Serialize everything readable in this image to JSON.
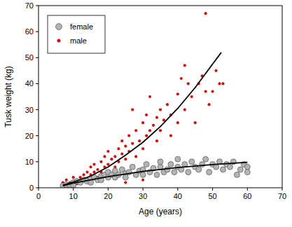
{
  "chart_data": {
    "type": "scatter",
    "x_label": "Age (years)",
    "y_label": "Tusk weight (kg)",
    "xlim": [
      0,
      70
    ],
    "ylim": [
      0,
      70
    ],
    "xticks": [
      0,
      10,
      20,
      30,
      40,
      50,
      60,
      70
    ],
    "yticks": [
      0,
      10,
      20,
      30,
      40,
      50,
      60,
      70
    ],
    "grid": false,
    "legend": "upper left",
    "series": [
      {
        "name": "male",
        "color": "#cc1111",
        "marker": "dot",
        "x": [
          7,
          7,
          8,
          8,
          9,
          9,
          10,
          10,
          11,
          11,
          12,
          12,
          13,
          13,
          14,
          14,
          15,
          15,
          16,
          16,
          17,
          17,
          18,
          18,
          19,
          19,
          20,
          20,
          20,
          21,
          22,
          22,
          23,
          23,
          24,
          24,
          25,
          25,
          25,
          26,
          26,
          27,
          27,
          28,
          28,
          29,
          30,
          30,
          30,
          31,
          31,
          32,
          32,
          33,
          34,
          34,
          35,
          35,
          36,
          37,
          38,
          38,
          40,
          40,
          41,
          42,
          42,
          43,
          44,
          45,
          46,
          47,
          48,
          48,
          49,
          50,
          51,
          52,
          53
        ],
        "values": [
          1,
          2,
          1.5,
          3,
          2,
          1,
          2.5,
          4,
          3,
          1.5,
          4,
          2,
          5,
          3,
          6,
          3.5,
          5,
          8,
          6,
          9,
          7,
          4,
          10,
          6,
          8,
          12,
          9,
          14,
          5,
          11,
          12,
          8,
          15,
          10,
          13,
          18,
          16,
          11,
          2,
          20,
          14,
          30,
          17,
          22,
          12,
          18,
          25,
          15,
          3,
          20,
          28,
          35,
          22,
          24,
          27,
          18,
          30,
          22,
          26,
          32,
          28,
          20,
          36,
          25,
          42,
          30,
          47,
          40,
          35,
          25,
          40,
          43,
          37,
          67,
          32,
          37,
          45,
          40,
          40
        ]
      },
      {
        "name": "female",
        "color": "#b4b4b4",
        "marker": "circle",
        "x": [
          7,
          8,
          9,
          10,
          10,
          11,
          12,
          13,
          14,
          15,
          15,
          16,
          17,
          18,
          18,
          19,
          20,
          20,
          21,
          22,
          22,
          23,
          24,
          25,
          25,
          26,
          27,
          28,
          29,
          30,
          30,
          31,
          32,
          33,
          34,
          35,
          35,
          36,
          37,
          38,
          39,
          40,
          40,
          41,
          42,
          43,
          44,
          45,
          46,
          47,
          48,
          49,
          50,
          51,
          52,
          53,
          54,
          55,
          56,
          57,
          58,
          59,
          60,
          60
        ],
        "values": [
          0.8,
          1.2,
          1,
          2,
          1,
          2.5,
          2,
          3,
          2.5,
          3.5,
          2,
          4,
          3,
          4.5,
          3,
          5,
          4,
          6,
          5,
          4,
          6.5,
          5,
          7,
          5.5,
          4,
          6,
          8,
          5,
          6.5,
          7,
          5,
          9,
          6,
          7.5,
          5,
          8,
          10,
          6,
          7,
          9,
          6,
          8,
          11,
          7,
          9,
          6,
          10,
          8,
          7,
          9,
          11,
          6,
          9,
          8,
          10,
          7,
          9,
          8,
          10,
          5,
          7,
          9,
          8,
          6
        ]
      },
      {
        "type": "line",
        "color": "#000000",
        "line_style": "solid",
        "x": [
          7,
          10,
          15,
          20,
          25,
          30,
          35,
          40,
          45,
          50,
          52.5
        ],
        "values": [
          1,
          2.2,
          4.5,
          8,
          12.5,
          17.5,
          23.5,
          30.5,
          38.5,
          47.5,
          52
        ]
      },
      {
        "type": "line",
        "color": "#000000",
        "line_style": "solid",
        "x": [
          7,
          10,
          20,
          30,
          40,
          50,
          60
        ],
        "values": [
          0.8,
          1.8,
          4.3,
          6.3,
          7.8,
          8.9,
          9.8
        ]
      }
    ]
  }
}
